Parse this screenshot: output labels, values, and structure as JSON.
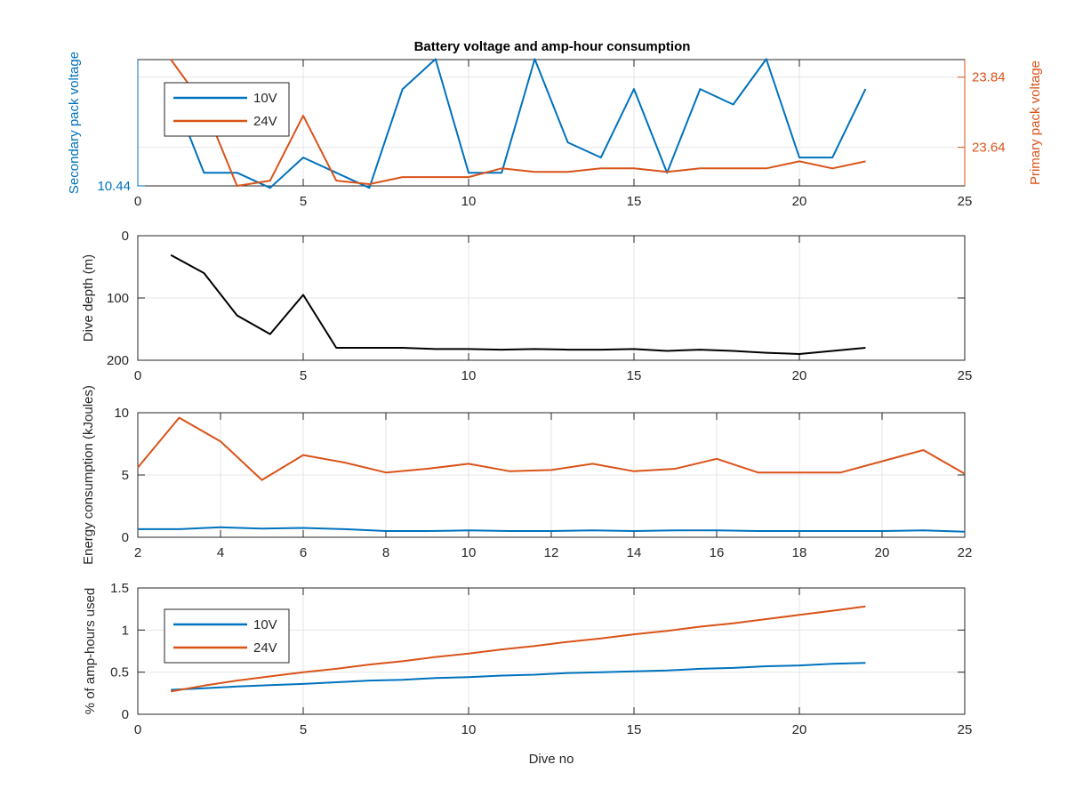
{
  "figure": {
    "title": "Battery voltage and amp-hour consumption"
  },
  "colors": {
    "series_10v": "#0072BD",
    "series_24v": "#D95319",
    "depth": "#000000",
    "axis": "#262626",
    "grid": "#e6e6e6"
  },
  "chart_data": [
    {
      "type": "line",
      "title": "Battery voltage and amp-hour consumption",
      "xlabel": "",
      "xlim": [
        0,
        25
      ],
      "xticks": [
        0,
        5,
        10,
        15,
        20,
        25
      ],
      "grid": true,
      "legend": {
        "position": "top-left",
        "entries": [
          "10V",
          "24V"
        ]
      },
      "left_axis": {
        "label": "Secondary pack voltage",
        "ylim": [
          10.44,
          10.485
        ],
        "ticks": [
          10.44
        ],
        "tick_labels": [
          "10.44"
        ]
      },
      "right_axis": {
        "label": "Primary pack voltage",
        "ylim": [
          23.53,
          23.89
        ],
        "ticks": [
          23.64,
          23.84
        ],
        "tick_labels": [
          "23.64",
          "23.84"
        ]
      },
      "series": [
        {
          "name": "10V",
          "axis": "left",
          "x": [
            1,
            2,
            3,
            4,
            5,
            6,
            7,
            8,
            9,
            10,
            11,
            12,
            13,
            14,
            15,
            16,
            17,
            18,
            19,
            20,
            21,
            22
          ],
          "y": [
            10.4745,
            10.4447,
            10.4447,
            10.4393,
            10.4501,
            10.4447,
            10.4393,
            10.4744,
            10.4852,
            10.4447,
            10.4447,
            10.4852,
            10.4555,
            10.4501,
            10.4745,
            10.4447,
            10.4745,
            10.469,
            10.4852,
            10.4501,
            10.4501,
            10.4745
          ]
        },
        {
          "name": "24V",
          "axis": "right",
          "x": [
            1,
            2,
            3,
            4,
            5,
            6,
            7,
            8,
            9,
            10,
            11,
            12,
            13,
            14,
            15,
            16,
            17,
            18,
            19,
            20,
            21,
            22
          ],
          "y": [
            23.89,
            23.76,
            23.53,
            23.545,
            23.73,
            23.545,
            23.535,
            23.555,
            23.555,
            23.555,
            23.58,
            23.57,
            23.57,
            23.58,
            23.58,
            23.57,
            23.58,
            23.58,
            23.58,
            23.6,
            23.58,
            23.6
          ]
        }
      ]
    },
    {
      "type": "line",
      "xlabel": "",
      "ylabel": "Dive depth (m)",
      "xlim": [
        0,
        25
      ],
      "xticks": [
        0,
        5,
        10,
        15,
        20,
        25
      ],
      "ylim": [
        0,
        200
      ],
      "y_reversed": true,
      "yticks": [
        0,
        100,
        200
      ],
      "grid": true,
      "series": [
        {
          "x": [
            1,
            2,
            3,
            4,
            5,
            6,
            7,
            8,
            9,
            10,
            11,
            12,
            13,
            14,
            15,
            16,
            17,
            18,
            19,
            20,
            21,
            22
          ],
          "y": [
            31,
            60,
            128,
            158,
            95,
            180,
            180,
            180,
            182,
            182,
            183,
            182,
            183,
            183,
            182,
            185,
            183,
            185,
            188,
            190,
            185,
            180
          ]
        }
      ]
    },
    {
      "type": "line",
      "xlabel": "",
      "ylabel": "Energy consumption (kJoules)",
      "xlim": [
        2,
        22
      ],
      "xticks": [
        2,
        4,
        6,
        8,
        10,
        12,
        14,
        16,
        18,
        20,
        22
      ],
      "ylim": [
        0,
        10
      ],
      "yticks": [
        0,
        5,
        10
      ],
      "grid": true,
      "series": [
        {
          "name": "24V",
          "x": [
            2,
            3,
            4,
            5,
            6,
            7,
            8,
            9,
            10,
            11,
            12,
            13,
            14,
            15,
            16,
            17,
            18,
            19,
            20,
            21,
            22
          ],
          "y": [
            5.6,
            9.6,
            7.7,
            4.6,
            6.6,
            6.0,
            5.2,
            5.5,
            5.9,
            5.3,
            5.4,
            5.9,
            5.3,
            5.5,
            6.3,
            5.2,
            5.2,
            5.2,
            6.1,
            7.0,
            5.1
          ]
        },
        {
          "name": "10V",
          "x": [
            2,
            3,
            4,
            5,
            6,
            7,
            8,
            9,
            10,
            11,
            12,
            13,
            14,
            15,
            16,
            17,
            18,
            19,
            20,
            21,
            22
          ],
          "y": [
            0.65,
            0.65,
            0.8,
            0.7,
            0.75,
            0.65,
            0.5,
            0.5,
            0.55,
            0.5,
            0.5,
            0.55,
            0.5,
            0.55,
            0.55,
            0.5,
            0.5,
            0.5,
            0.5,
            0.55,
            0.45
          ]
        }
      ]
    },
    {
      "type": "line",
      "xlabel": "Dive no",
      "ylabel": "% of amp-hours used",
      "xlim": [
        0,
        25
      ],
      "xticks": [
        0,
        5,
        10,
        15,
        20,
        25
      ],
      "ylim": [
        0,
        1.5
      ],
      "yticks": [
        0,
        0.5,
        1,
        1.5
      ],
      "grid": true,
      "legend": {
        "position": "bottom-left",
        "entries": [
          "10V",
          "24V"
        ]
      },
      "series": [
        {
          "name": "10V",
          "x": [
            1,
            2,
            3,
            4,
            5,
            6,
            7,
            8,
            9,
            10,
            11,
            12,
            13,
            14,
            15,
            16,
            17,
            18,
            19,
            20,
            21,
            22
          ],
          "y": [
            0.29,
            0.31,
            0.33,
            0.345,
            0.36,
            0.38,
            0.4,
            0.41,
            0.43,
            0.44,
            0.46,
            0.47,
            0.49,
            0.5,
            0.51,
            0.52,
            0.54,
            0.55,
            0.57,
            0.58,
            0.6,
            0.61
          ]
        },
        {
          "name": "24V",
          "x": [
            1,
            2,
            3,
            4,
            5,
            6,
            7,
            8,
            9,
            10,
            11,
            12,
            13,
            14,
            15,
            16,
            17,
            18,
            19,
            20,
            21,
            22
          ],
          "y": [
            0.27,
            0.34,
            0.4,
            0.45,
            0.5,
            0.54,
            0.59,
            0.63,
            0.68,
            0.72,
            0.77,
            0.81,
            0.86,
            0.9,
            0.95,
            0.99,
            1.04,
            1.08,
            1.13,
            1.18,
            1.23,
            1.28
          ]
        }
      ]
    }
  ]
}
